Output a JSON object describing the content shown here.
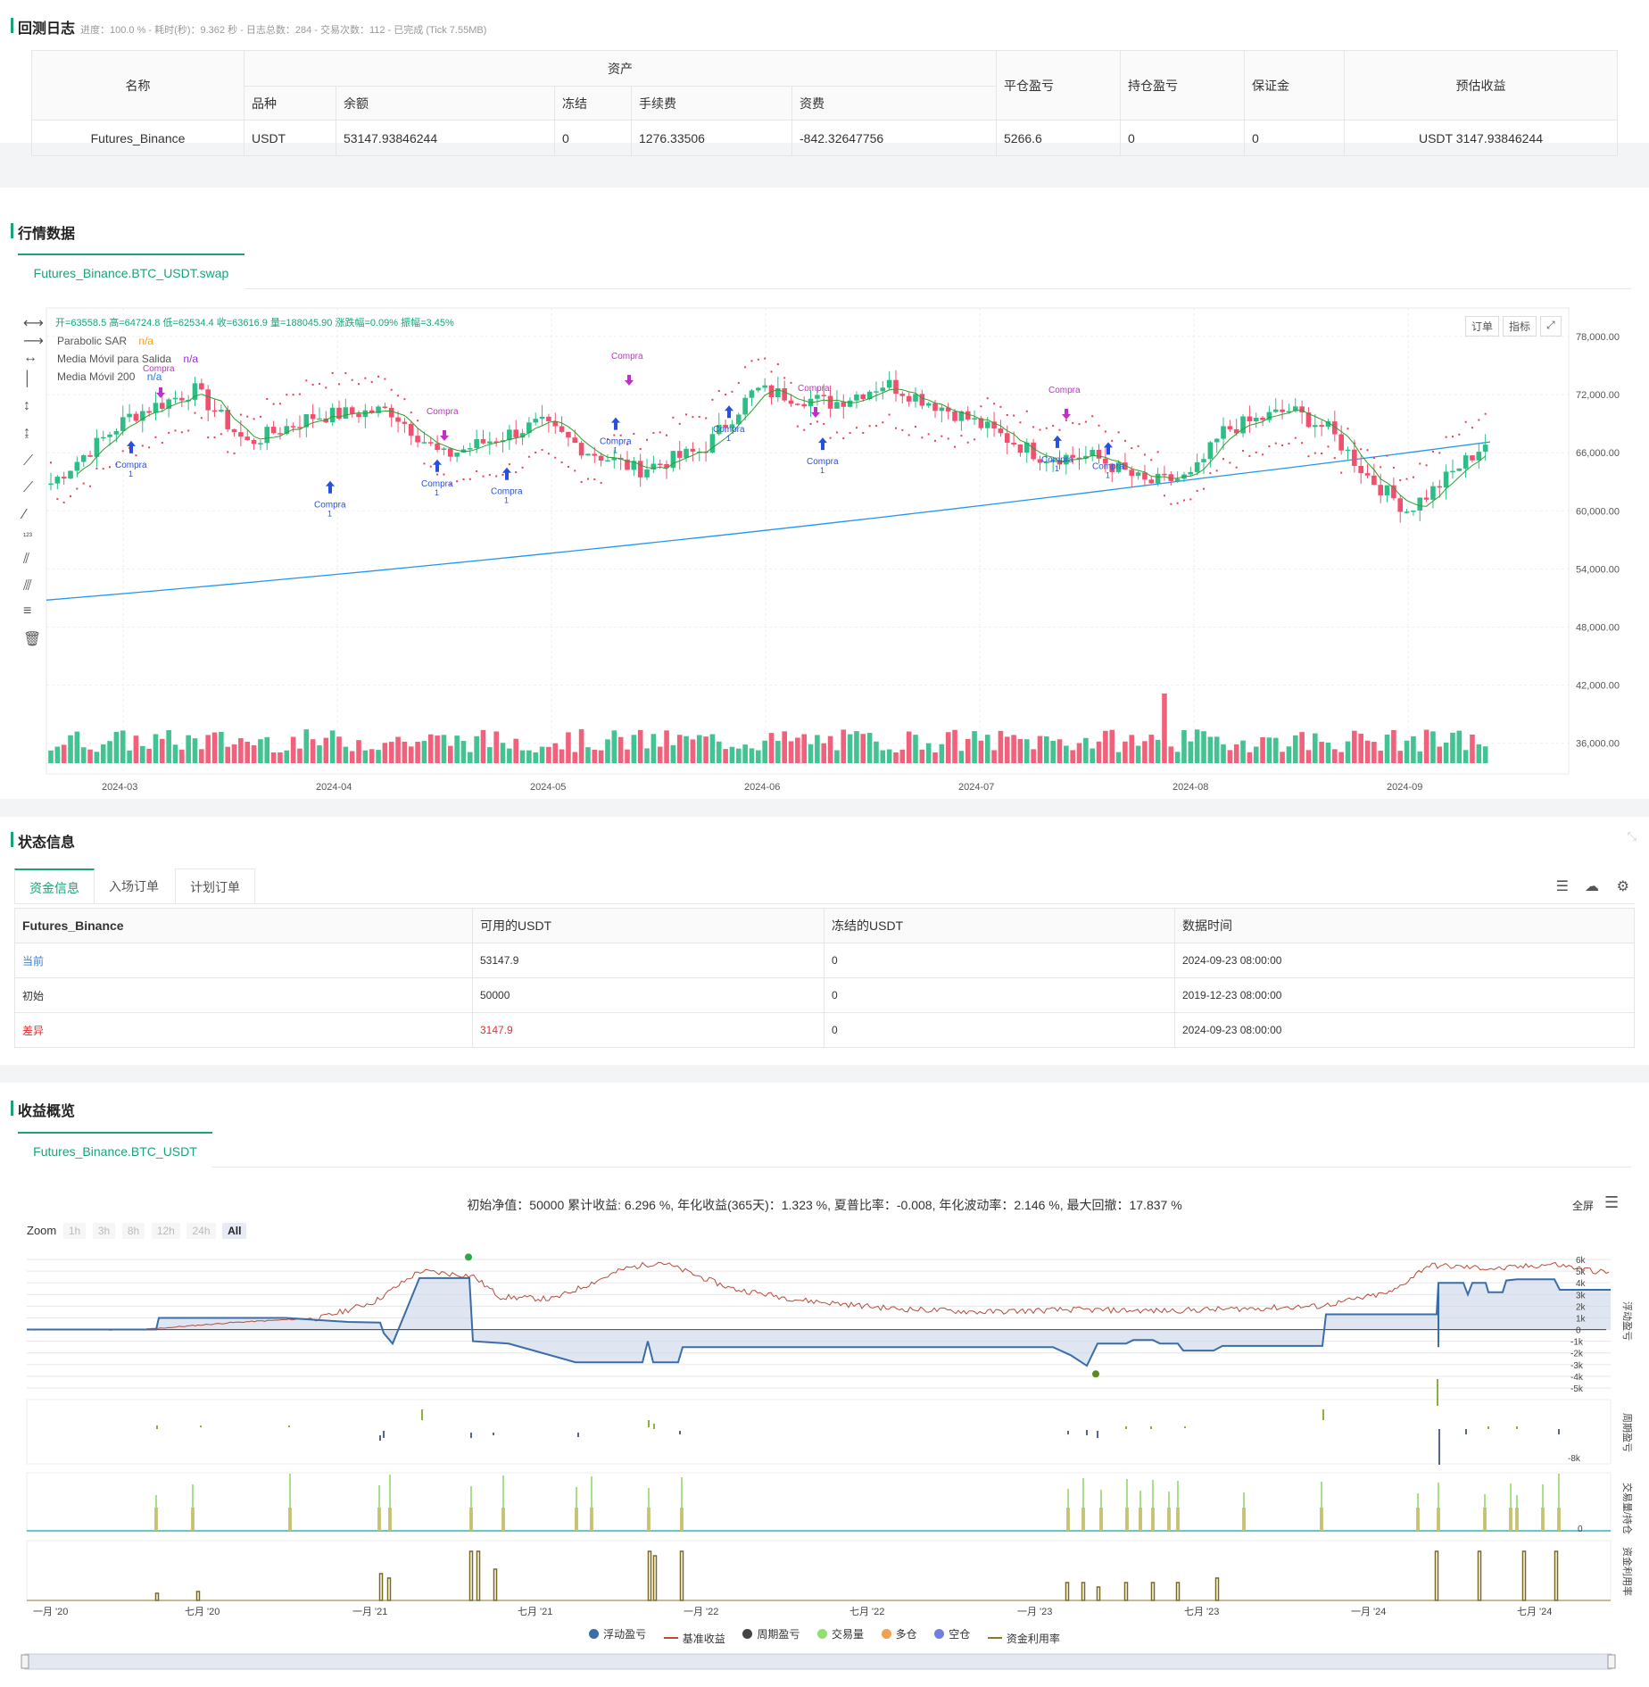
{
  "log": {
    "title": "回测日志",
    "status": "进度：100.0 % - 耗时(秒)：9.362 秒 - 日志总数：284 - 交易次数：112 - 已完成 (Tick 7.55MB)",
    "headers": {
      "name": "名称",
      "assets": "资产",
      "variety": "品种",
      "balance": "余额",
      "frozen": "冻结",
      "fee": "手续费",
      "funding": "资费",
      "close_pnl": "平仓盈亏",
      "pos_pnl": "持仓盈亏",
      "margin": "保证金",
      "est_profit": "预估收益"
    },
    "row": {
      "name": "Futures_Binance",
      "variety": "USDT",
      "balance": "53147.93846244",
      "frozen": "0",
      "fee": "1276.33506",
      "funding": "-842.32647756",
      "close_pnl": "5266.6",
      "pos_pnl": "0",
      "margin": "0",
      "est_profit": "USDT 3147.93846244"
    }
  },
  "market": {
    "title": "行情数据",
    "tab": "Futures_Binance.BTC_USDT.swap",
    "ohlc_line": "开=63558.5 高=64724.8 低=62534.4 收=63616.9 量=188045.90 涨跌幅=0.09% 振幅=3.45%",
    "indicators": [
      {
        "name": "Parabolic SAR",
        "value": "n/a",
        "color": "#f0a020"
      },
      {
        "name": "Media Móvil para Salida",
        "value": "n/a",
        "color": "#9b30c8"
      },
      {
        "name": "Media Móvil 200",
        "value": "n/a",
        "color": "#2a7ad8"
      }
    ],
    "buttons": {
      "order": "订单",
      "indicator": "指标"
    },
    "price_ticks": [
      "78,000.00",
      "72,000.00",
      "66,000.00",
      "60,000.00",
      "54,000.00",
      "48,000.00",
      "42,000.00",
      "36,000.00"
    ],
    "date_ticks": [
      "2024-03",
      "2024-04",
      "2024-05",
      "2024-06",
      "2024-07",
      "2024-08",
      "2024-09"
    ],
    "buy_label": "Compra",
    "buy_qty": "1",
    "colors": {
      "up": "#2ebd85",
      "down": "#f0506e",
      "ma200": "#2196f3",
      "exit_ma": "#2e9e2e",
      "sar": "#e8404e",
      "signal": "#2850e0",
      "compra_top": "#c030c8"
    }
  },
  "status": {
    "title": "状态信息",
    "tabs": [
      "资金信息",
      "入场订单",
      "计划订单"
    ],
    "headers": [
      "Futures_Binance",
      "可用的USDT",
      "冻结的USDT",
      "数据时间"
    ],
    "rows": [
      {
        "label": "当前",
        "available": "53147.9",
        "frozen": "0",
        "time": "2024-09-23 08:00:00"
      },
      {
        "label": "初始",
        "available": "50000",
        "frozen": "0",
        "time": "2019-12-23 08:00:00"
      },
      {
        "label": "差异",
        "available": "3147.9",
        "frozen": "0",
        "time": "2024-09-23 08:00:00"
      }
    ]
  },
  "profit": {
    "title": "收益概览",
    "tab": "Futures_Binance.BTC_USDT",
    "summary": "初始净值：50000 累计收益: 6.296 %, 年化收益(365天)：1.323 %, 夏普比率：-0.008, 年化波动率：2.146 %, 最大回撤：17.837 %",
    "fullscreen": "全屏",
    "zoom_label": "Zoom",
    "zoom_buttons": [
      "1h",
      "3h",
      "8h",
      "12h",
      "24h",
      "All"
    ],
    "pnl_ticks": [
      "6k",
      "5k",
      "4k",
      "3k",
      "2k",
      "1k",
      "0",
      "-1k",
      "-2k",
      "-3k",
      "-4k",
      "-5k"
    ],
    "axis_labels": {
      "float": "浮动盈亏",
      "period": "周期盈亏",
      "volume": "交易量/持仓",
      "util": "资金利用率"
    },
    "period_tick": "-8k",
    "zero_tick": "0",
    "time_ticks": [
      "一月 '20",
      "七月 '20",
      "一月 '21",
      "七月 '21",
      "一月 '22",
      "七月 '22",
      "一月 '23",
      "七月 '23",
      "一月 '24",
      "七月 '24"
    ],
    "legend": [
      {
        "name": "浮动盈亏",
        "color": "#3a6ea8"
      },
      {
        "name": "基准收益",
        "color": "#b84a3a"
      },
      {
        "name": "周期盈亏",
        "color": "#444"
      },
      {
        "name": "交易量",
        "color": "#90e070"
      },
      {
        "name": "多仓",
        "color": "#f0a050"
      },
      {
        "name": "空仓",
        "color": "#7080e0"
      },
      {
        "name": "资金利用率",
        "color": "#8a7a30"
      }
    ]
  }
}
